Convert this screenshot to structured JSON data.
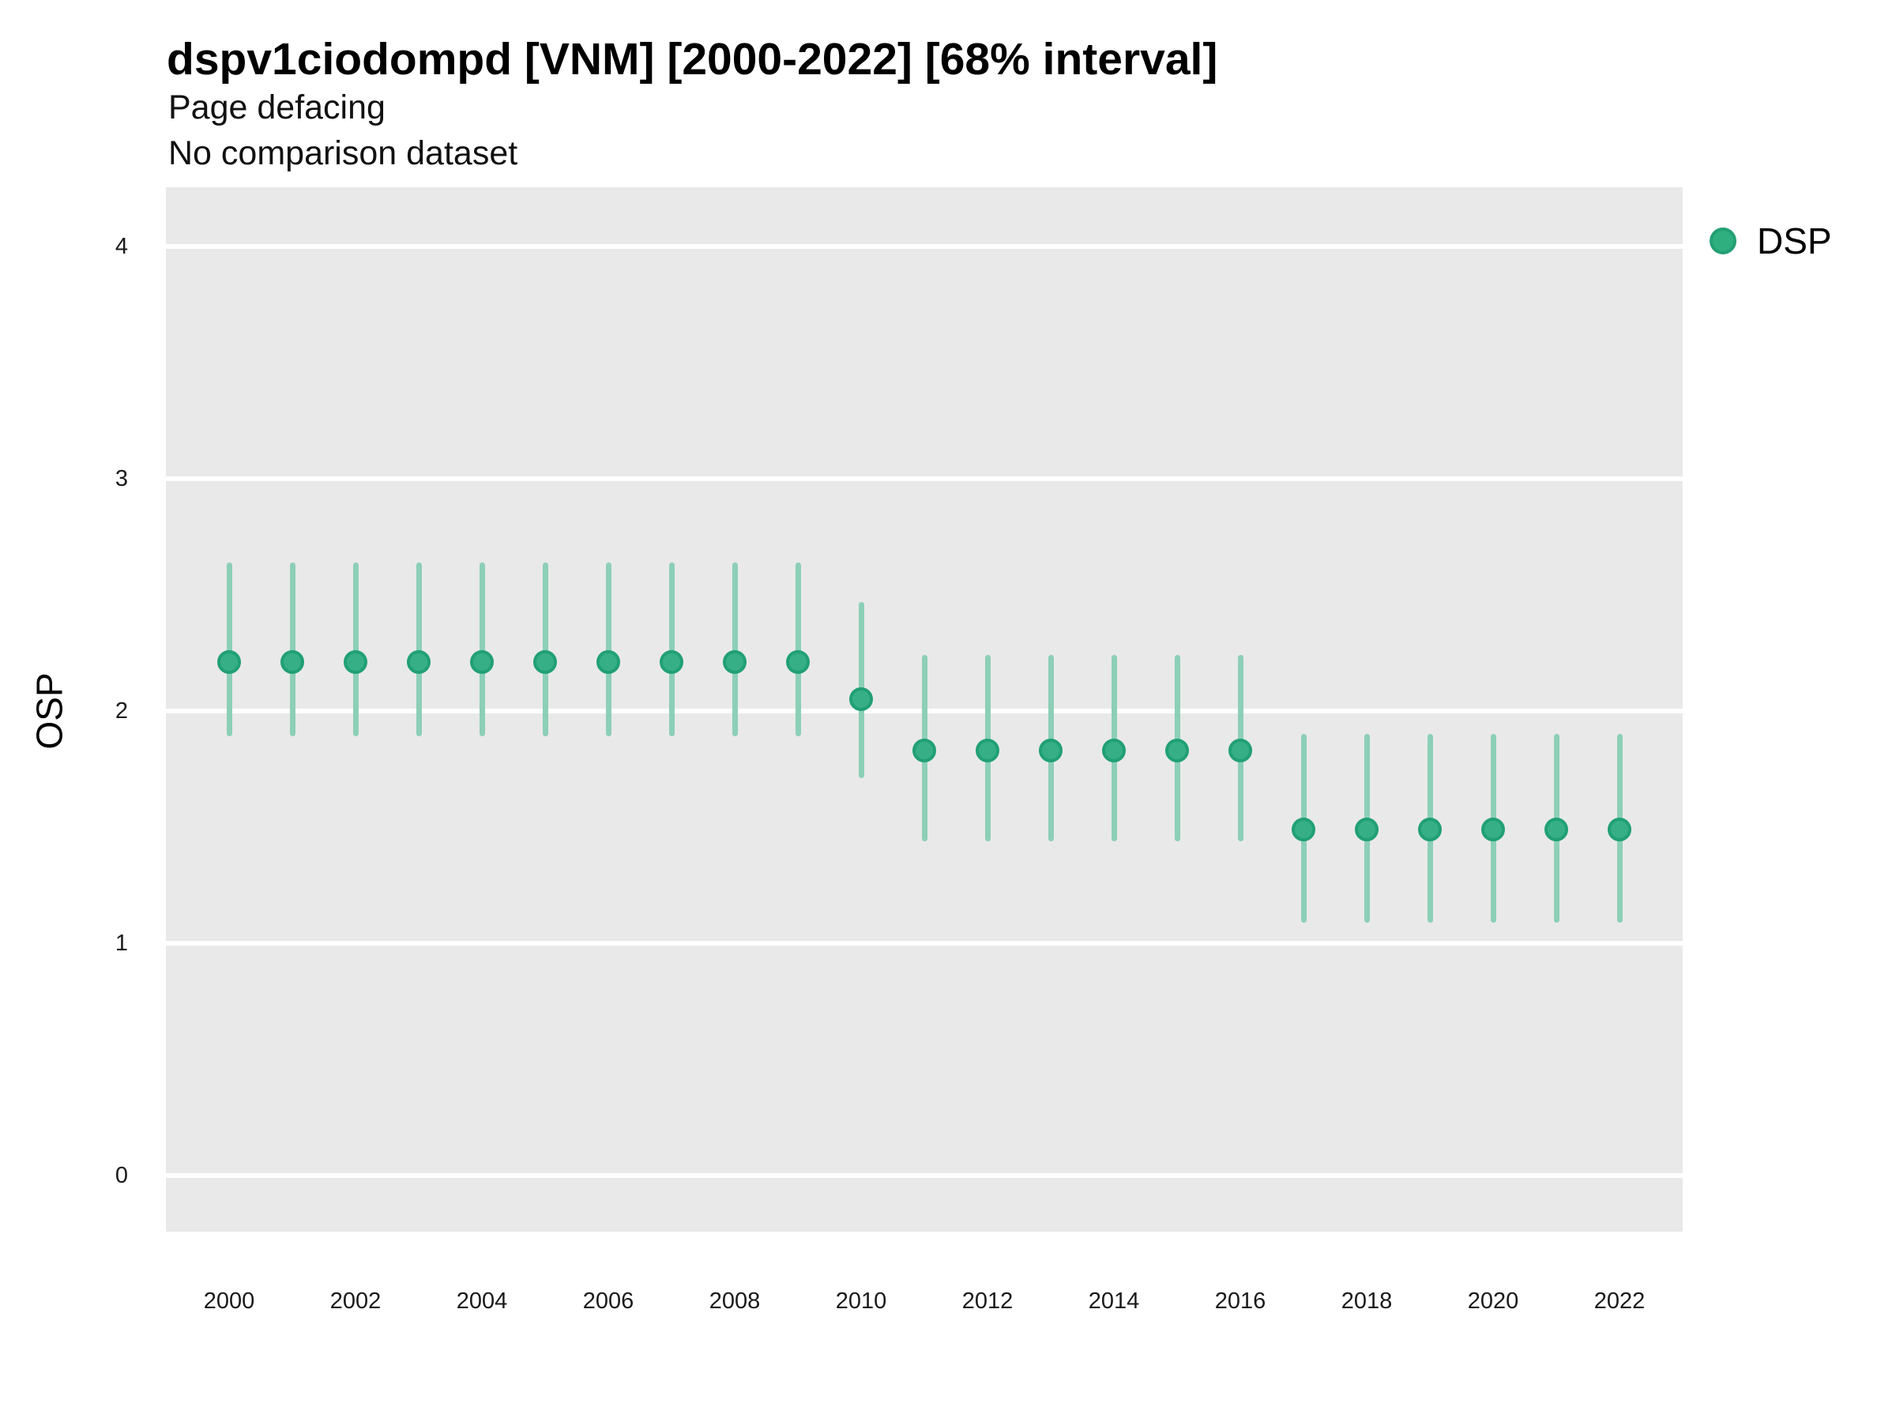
{
  "header": {
    "title": "dspv1ciodompd [VNM] [2000-2022] [68% interval]",
    "subtitle": "Page defacing",
    "note": "No comparison dataset"
  },
  "legend": {
    "items": [
      {
        "label": "DSP",
        "color": "#2fae80"
      }
    ],
    "position": "right"
  },
  "colors": {
    "panel_background": "#e9e9e9",
    "gridline": "#ffffff",
    "point_fill": "#37af86",
    "point_stroke": "#21a075",
    "errorbar": "#8ccfb7",
    "text": "#1a1a1a"
  },
  "chart_data": {
    "type": "scatter",
    "subtype": "pointrange",
    "title": "dspv1ciodompd [VNM] [2000-2022] [68% interval]",
    "subtitle": "Page defacing",
    "annotation": "No comparison dataset",
    "interval": "68%",
    "xlabel": "",
    "ylabel": "OSP",
    "x": [
      2000,
      2001,
      2002,
      2003,
      2004,
      2005,
      2006,
      2007,
      2008,
      2009,
      2010,
      2011,
      2012,
      2013,
      2014,
      2015,
      2016,
      2017,
      2018,
      2019,
      2020,
      2021,
      2022
    ],
    "series": [
      {
        "name": "DSP",
        "values": [
          2.21,
          2.21,
          2.21,
          2.21,
          2.21,
          2.21,
          2.21,
          2.21,
          2.21,
          2.21,
          2.05,
          1.83,
          1.83,
          1.83,
          1.83,
          1.83,
          1.83,
          1.49,
          1.49,
          1.49,
          1.49,
          1.49,
          1.49
        ],
        "lower": [
          1.89,
          1.89,
          1.89,
          1.89,
          1.89,
          1.89,
          1.89,
          1.89,
          1.89,
          1.89,
          1.71,
          1.44,
          1.44,
          1.44,
          1.44,
          1.44,
          1.44,
          1.09,
          1.09,
          1.09,
          1.09,
          1.09,
          1.09
        ],
        "upper": [
          2.64,
          2.64,
          2.64,
          2.64,
          2.64,
          2.64,
          2.64,
          2.64,
          2.64,
          2.64,
          2.47,
          2.24,
          2.24,
          2.24,
          2.24,
          2.24,
          2.24,
          1.9,
          1.9,
          1.9,
          1.9,
          1.9,
          1.9
        ]
      }
    ],
    "y_ticks": [
      0,
      1,
      2,
      3,
      4
    ],
    "x_tick_labels": [
      "2000",
      "2002",
      "2004",
      "2006",
      "2008",
      "2010",
      "2012",
      "2014",
      "2016",
      "2018",
      "2020",
      "2022"
    ],
    "ylim": [
      -0.24,
      4.26
    ],
    "grid": "horizontal-major",
    "legend_position": "right"
  }
}
